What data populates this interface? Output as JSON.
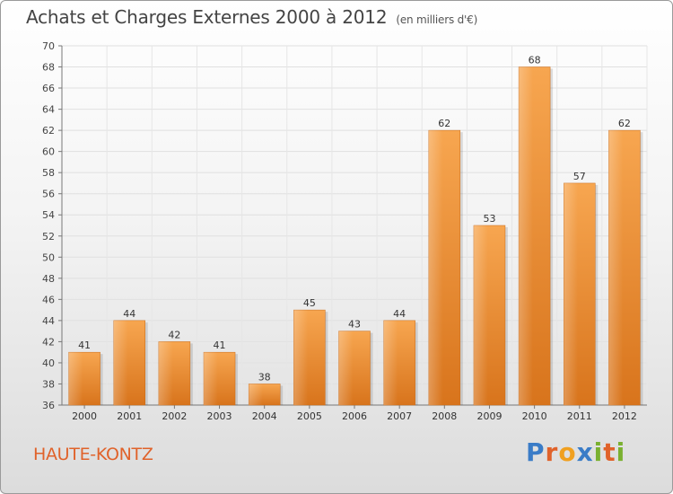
{
  "title": "Achats et Charges Externes 2000 à 2012",
  "title_unit": "(en milliers d'€)",
  "commune": "HAUTE-KONTZ",
  "brand": {
    "letters": [
      "P",
      "r",
      "o",
      "x",
      "i",
      "t",
      "i"
    ],
    "colors": [
      "#3a7cc7",
      "#e0622a",
      "#f0a020",
      "#3a7cc7",
      "#7ab030",
      "#e0622a",
      "#7ab030"
    ]
  },
  "chart_data": {
    "type": "bar",
    "categories": [
      "2000",
      "2001",
      "2002",
      "2003",
      "2004",
      "2005",
      "2006",
      "2007",
      "2008",
      "2009",
      "2010",
      "2011",
      "2012"
    ],
    "values": [
      41,
      44,
      42,
      41,
      38,
      45,
      43,
      44,
      62,
      53,
      68,
      57,
      62
    ],
    "ylim": [
      36,
      70
    ],
    "yticks": [
      36,
      38,
      40,
      42,
      44,
      46,
      48,
      50,
      52,
      54,
      56,
      58,
      60,
      62,
      64,
      66,
      68,
      70
    ],
    "grid": true,
    "bar_color": "#f0892a",
    "data_labels": true
  }
}
